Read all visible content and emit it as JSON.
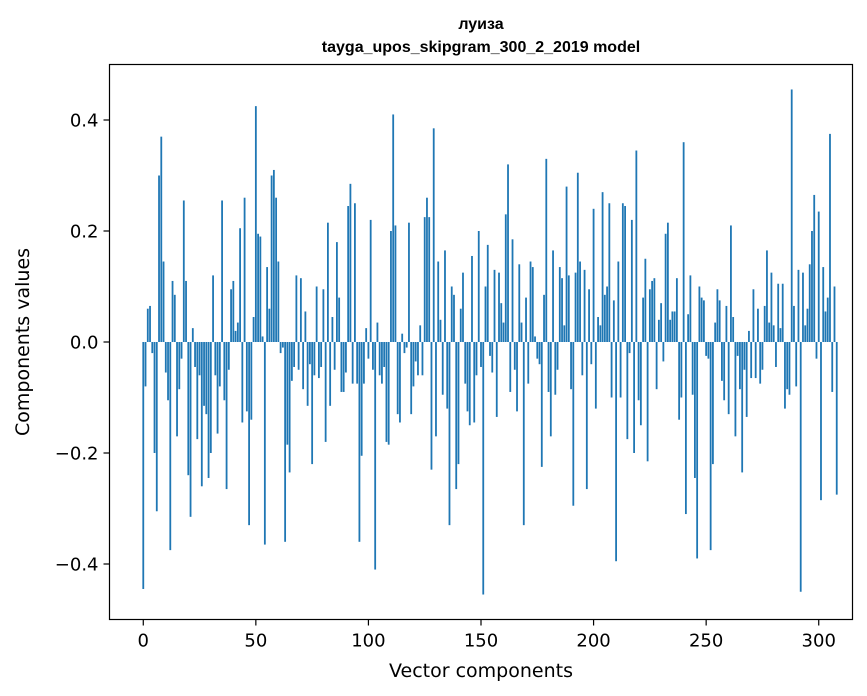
{
  "chart_data": {
    "type": "bar",
    "title": "луиза",
    "subtitle": "tayga_upos_skipgram_300_2_2019 model",
    "xlabel": "Vector components",
    "ylabel": "Components values",
    "xlim": [
      -15,
      315
    ],
    "ylim": [
      -0.5,
      0.5
    ],
    "xticks": [
      0,
      50,
      100,
      150,
      200,
      250,
      300
    ],
    "xtick_labels": [
      "0",
      "50",
      "100",
      "150",
      "200",
      "250",
      "300"
    ],
    "yticks": [
      -0.4,
      -0.2,
      0.0,
      0.2,
      0.4
    ],
    "ytick_labels": [
      "−0.4",
      "−0.2",
      "0.0",
      "0.2",
      "0.4"
    ],
    "grid": false,
    "bar_color": "#1f77b4",
    "values": [
      -0.445,
      -0.08,
      0.06,
      0.065,
      -0.02,
      -0.2,
      -0.305,
      0.3,
      0.37,
      0.145,
      -0.055,
      -0.105,
      -0.375,
      0.11,
      0.085,
      -0.17,
      -0.085,
      -0.03,
      0.255,
      0.11,
      -0.24,
      -0.315,
      0.025,
      -0.045,
      -0.175,
      -0.06,
      -0.26,
      -0.115,
      -0.13,
      -0.245,
      -0.2,
      0.12,
      -0.06,
      -0.165,
      -0.08,
      0.255,
      -0.105,
      -0.265,
      -0.05,
      0.095,
      0.11,
      0.02,
      0.035,
      0.205,
      -0.145,
      0.26,
      -0.125,
      -0.33,
      -0.14,
      0.045,
      0.425,
      0.195,
      0.19,
      0.01,
      -0.365,
      0.135,
      0.06,
      0.3,
      0.31,
      0.26,
      0.145,
      -0.02,
      -0.01,
      -0.36,
      -0.185,
      -0.235,
      -0.07,
      -0.045,
      0.12,
      -0.05,
      0.115,
      -0.085,
      0.055,
      -0.115,
      -0.04,
      -0.22,
      -0.06,
      0.1,
      -0.065,
      -0.045,
      0.095,
      -0.18,
      0.215,
      -0.115,
      0.045,
      -0.05,
      0.18,
      0.08,
      -0.09,
      -0.09,
      -0.055,
      0.245,
      0.285,
      -0.075,
      0.25,
      -0.075,
      -0.36,
      -0.205,
      -0.075,
      0.025,
      -0.03,
      0.22,
      -0.05,
      -0.41,
      0.035,
      -0.06,
      -0.075,
      -0.045,
      -0.18,
      -0.185,
      0.2,
      0.41,
      0.21,
      -0.13,
      -0.145,
      0.015,
      -0.02,
      -0.01,
      0.215,
      -0.13,
      -0.08,
      -0.035,
      -0.06,
      0.03,
      -0.06,
      0.225,
      0.26,
      0.225,
      -0.23,
      0.385,
      -0.17,
      0.145,
      0.04,
      -0.095,
      0.165,
      -0.12,
      -0.33,
      0.1,
      0.085,
      -0.265,
      -0.22,
      0.06,
      0.125,
      -0.075,
      -0.125,
      -0.15,
      0.155,
      -0.145,
      -0.06,
      0.2,
      -0.045,
      -0.455,
      0.1,
      0.175,
      -0.025,
      -0.055,
      0.13,
      -0.135,
      0.125,
      0.07,
      0.035,
      0.23,
      0.32,
      -0.09,
      0.185,
      -0.05,
      -0.125,
      0.14,
      0.035,
      -0.33,
      0.08,
      -0.075,
      0.145,
      0.135,
      0.01,
      -0.03,
      -0.04,
      -0.225,
      0.085,
      0.33,
      -0.09,
      -0.17,
      0.165,
      -0.095,
      -0.05,
      0.135,
      0.115,
      0.03,
      0.28,
      0.12,
      -0.085,
      -0.295,
      0.125,
      0.305,
      0.145,
      -0.06,
      0.13,
      -0.265,
      0.095,
      -0.04,
      0.24,
      -0.12,
      0.045,
      0.03,
      0.27,
      0.085,
      0.1,
      0.25,
      -0.1,
      0.075,
      -0.395,
      0.145,
      -0.1,
      0.25,
      0.245,
      -0.175,
      -0.02,
      0.22,
      -0.2,
      0.345,
      -0.105,
      -0.15,
      0.08,
      0.15,
      -0.215,
      0.095,
      0.11,
      0.115,
      -0.085,
      0.04,
      0.07,
      -0.035,
      0.195,
      0.215,
      0.04,
      0.055,
      0.055,
      0.115,
      -0.14,
      -0.1,
      0.36,
      -0.31,
      0.05,
      0.12,
      -0.095,
      -0.245,
      -0.39,
      0.1,
      0.08,
      0.075,
      -0.025,
      -0.03,
      -0.375,
      -0.22,
      0.035,
      0.095,
      0.075,
      -0.07,
      -0.105,
      0.065,
      -0.13,
      0.21,
      0.045,
      -0.17,
      -0.025,
      -0.085,
      -0.235,
      -0.05,
      -0.135,
      0.02,
      -0.065,
      0.095,
      -0.065,
      0.06,
      -0.075,
      -0.05,
      0.065,
      0.165,
      0.035,
      0.125,
      0.03,
      -0.045,
      0.105,
      0.025,
      0.105,
      -0.12,
      -0.085,
      -0.095,
      0.455,
      0.065,
      -0.08,
      0.13,
      -0.45,
      0.125,
      0.03,
      0.06,
      0.14,
      0.2,
      0.265,
      -0.03,
      0.235,
      -0.285,
      0.135,
      0.055,
      0.08,
      0.375,
      -0.09,
      0.1,
      -0.275
    ]
  }
}
